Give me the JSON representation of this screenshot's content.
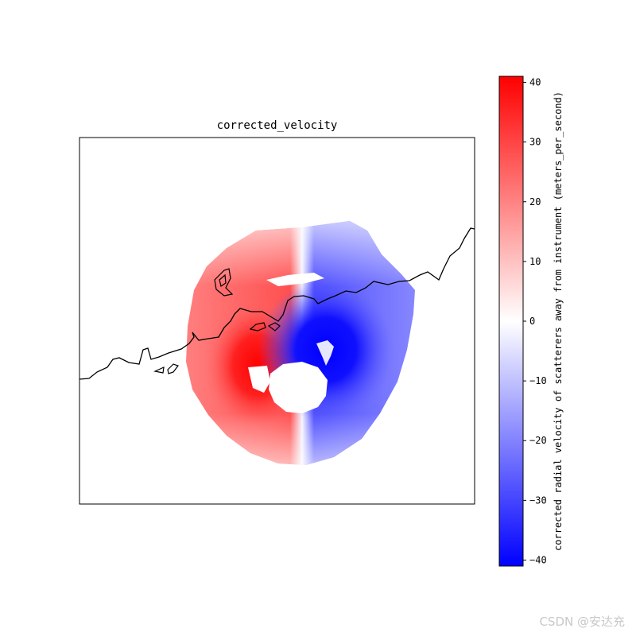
{
  "chart_data": {
    "type": "heatmap",
    "title": "corrected_velocity",
    "field": "corrected_velocity",
    "colormap": "bwr",
    "colorbar": {
      "label": "corrected radial velocity of scatterers away from instrument (meters_per_second)",
      "ticks": [
        40,
        30,
        20,
        10,
        0,
        -10,
        -20,
        -30,
        -40
      ],
      "tick_labels": [
        "40",
        "30",
        "20",
        "10",
        "0",
        "−10",
        "−20",
        "−30",
        "−40"
      ],
      "vmin": -41,
      "vmax": 41,
      "colors": [
        "#0000ff",
        "#ffffff",
        "#ff0000"
      ]
    },
    "features": [
      "coastline"
    ]
  },
  "watermark": "CSDN @安达充"
}
